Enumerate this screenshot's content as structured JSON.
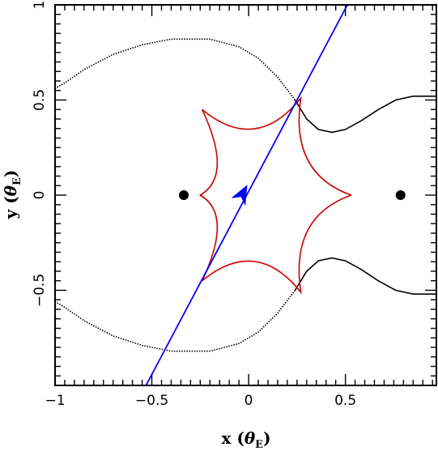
{
  "chart_data": {
    "type": "line",
    "title": "",
    "xlabel": "x (θE)",
    "ylabel": "y (θE)",
    "xlabel_parts": {
      "main": "x (",
      "theta": "θ",
      "sub": "E",
      "close": ")"
    },
    "ylabel_parts": {
      "main": "y (",
      "theta": "θ",
      "sub": "E",
      "close": ")"
    },
    "xlim": [
      -1.0,
      0.97
    ],
    "ylim": [
      -1.0,
      1.0
    ],
    "xticks": [
      {
        "value": -1,
        "label": "−1"
      },
      {
        "value": -0.5,
        "label": "−0.5"
      },
      {
        "value": 0,
        "label": "0"
      },
      {
        "value": 0.5,
        "label": "0.5"
      }
    ],
    "yticks": [
      {
        "value": -0.5,
        "label": "−0.5"
      },
      {
        "value": 0,
        "label": "0"
      },
      {
        "value": 0.5,
        "label": "0.5"
      },
      {
        "value": 1,
        "label": "1"
      }
    ],
    "grid": false,
    "lens_positions": [
      {
        "x": -0.335,
        "y": 0.0
      },
      {
        "x": 0.785,
        "y": 0.0
      }
    ],
    "source_trajectory": {
      "color": "#0000ff",
      "points": [
        [
          -0.53,
          -1.0
        ],
        [
          0.51,
          1.0
        ]
      ],
      "arrow": {
        "x": -0.035,
        "y": 0.0
      }
    },
    "caustic": {
      "color": "#cc0000",
      "cusps": [
        [
          0.53,
          0.0
        ],
        [
          0.27,
          0.51
        ],
        [
          -0.24,
          0.45
        ],
        [
          -0.25,
          0.0
        ],
        [
          -0.24,
          -0.45
        ],
        [
          0.27,
          -0.51
        ]
      ]
    },
    "critical_curve": {
      "color": "#000000",
      "outer_left_dotted": [
        [
          0.24,
          0.5
        ],
        [
          0.15,
          0.62
        ],
        [
          0.05,
          0.72
        ],
        [
          -0.05,
          0.78
        ],
        [
          -0.2,
          0.82
        ],
        [
          -0.4,
          0.82
        ],
        [
          -0.55,
          0.79
        ],
        [
          -0.7,
          0.74
        ],
        [
          -0.85,
          0.66
        ],
        [
          -0.95,
          0.59
        ],
        [
          -1.0,
          0.56
        ]
      ],
      "outer_right_solid": [
        [
          0.24,
          0.5
        ],
        [
          0.3,
          0.4
        ],
        [
          0.36,
          0.345
        ],
        [
          0.43,
          0.33
        ],
        [
          0.5,
          0.345
        ],
        [
          0.58,
          0.39
        ],
        [
          0.67,
          0.45
        ],
        [
          0.76,
          0.5
        ],
        [
          0.85,
          0.52
        ],
        [
          0.97,
          0.52
        ]
      ]
    }
  }
}
